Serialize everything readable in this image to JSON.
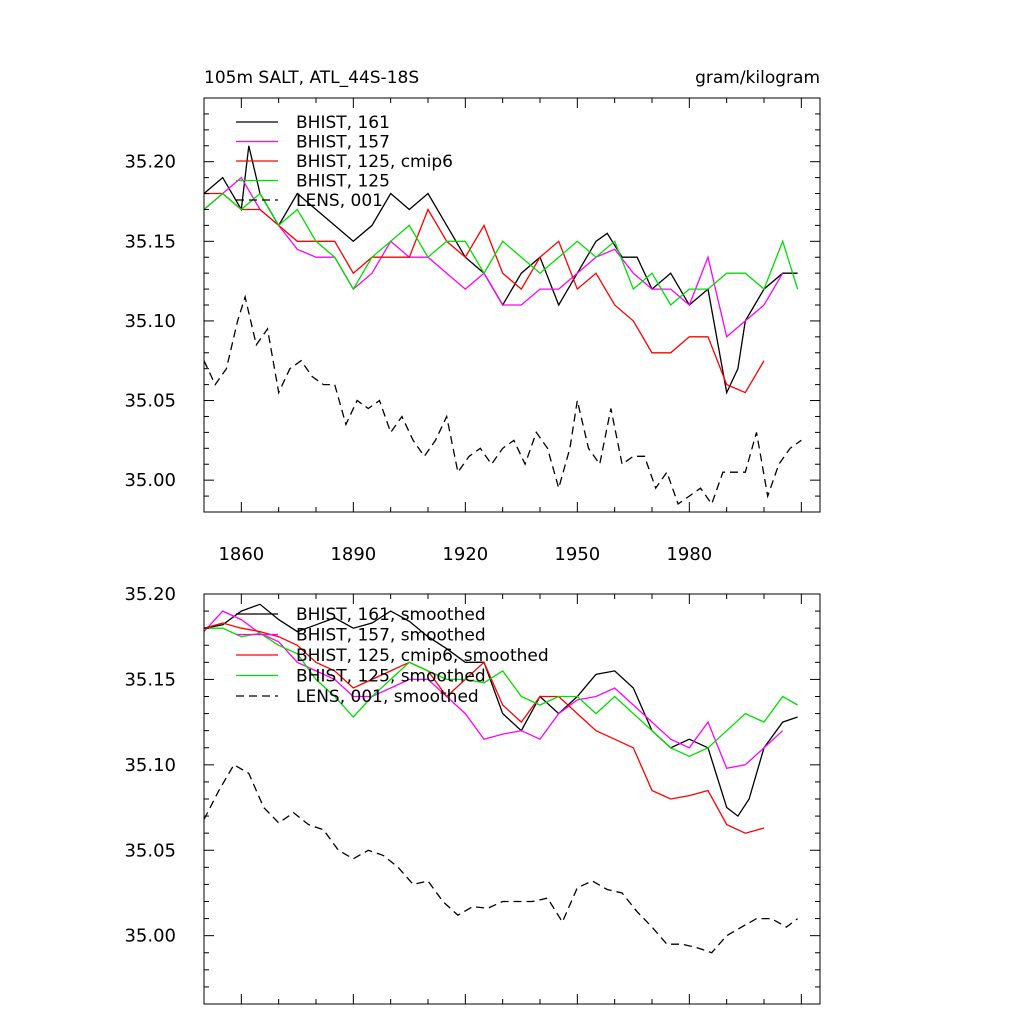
{
  "chart_data": [
    {
      "type": "line",
      "title": "105m SALT, ATL_44S-18S",
      "units": "gram/kilogram",
      "xlim": [
        1850,
        2015
      ],
      "ylim": [
        34.98,
        35.24
      ],
      "x_ticks": [
        1860,
        1890,
        1920,
        1950,
        1980
      ],
      "y_ticks": [
        35.0,
        35.05,
        35.1,
        35.15,
        35.2
      ],
      "y_tick_labels": [
        "35.00",
        "35.05",
        "35.10",
        "35.15",
        "35.20"
      ],
      "x_tick_labels": [
        "1860",
        "1890",
        "1920",
        "1950",
        "1980"
      ],
      "legend_location": "top-left",
      "series": [
        {
          "name": "BHIST, 161",
          "color": "#000000",
          "dash": "solid",
          "x": [
            1850,
            1855,
            1860,
            1862,
            1865,
            1870,
            1875,
            1880,
            1885,
            1890,
            1895,
            1900,
            1905,
            1910,
            1915,
            1920,
            1925,
            1930,
            1935,
            1940,
            1945,
            1950,
            1955,
            1958,
            1962,
            1966,
            1970,
            1975,
            1980,
            1985,
            1990,
            1993,
            1995,
            2000,
            2005,
            2009
          ],
          "y": [
            35.18,
            35.19,
            35.17,
            35.21,
            35.18,
            35.16,
            35.18,
            35.17,
            35.16,
            35.15,
            35.16,
            35.18,
            35.17,
            35.18,
            35.16,
            35.14,
            35.13,
            35.11,
            35.13,
            35.14,
            35.11,
            35.13,
            35.15,
            35.155,
            35.14,
            35.14,
            35.12,
            35.13,
            35.11,
            35.12,
            35.055,
            35.07,
            35.1,
            35.12,
            35.13,
            35.13
          ]
        },
        {
          "name": "BHIST, 157",
          "color": "#ff00ff",
          "dash": "solid",
          "x": [
            1850,
            1855,
            1860,
            1865,
            1870,
            1875,
            1880,
            1885,
            1890,
            1895,
            1900,
            1905,
            1910,
            1915,
            1920,
            1925,
            1930,
            1935,
            1940,
            1945,
            1950,
            1955,
            1960,
            1965,
            1970,
            1975,
            1980,
            1985,
            1990,
            1995,
            2000,
            2005
          ],
          "y": [
            35.17,
            35.18,
            35.19,
            35.17,
            35.16,
            35.145,
            35.14,
            35.14,
            35.12,
            35.13,
            35.15,
            35.14,
            35.14,
            35.13,
            35.12,
            35.13,
            35.11,
            35.11,
            35.12,
            35.12,
            35.13,
            35.14,
            35.145,
            35.13,
            35.12,
            35.12,
            35.11,
            35.14,
            35.09,
            35.1,
            35.11,
            35.13
          ]
        },
        {
          "name": "BHIST, 125, cmip6",
          "color": "#ff0000",
          "dash": "solid",
          "x": [
            1850,
            1855,
            1860,
            1865,
            1870,
            1875,
            1880,
            1885,
            1890,
            1895,
            1900,
            1905,
            1910,
            1915,
            1920,
            1925,
            1930,
            1935,
            1940,
            1945,
            1950,
            1955,
            1960,
            1965,
            1970,
            1975,
            1980,
            1985,
            1990,
            1995,
            2000
          ],
          "y": [
            35.18,
            35.18,
            35.17,
            35.17,
            35.16,
            35.15,
            35.15,
            35.15,
            35.13,
            35.14,
            35.14,
            35.14,
            35.17,
            35.15,
            35.14,
            35.16,
            35.13,
            35.12,
            35.14,
            35.15,
            35.12,
            35.13,
            35.11,
            35.1,
            35.08,
            35.08,
            35.09,
            35.09,
            35.06,
            35.055,
            35.075
          ]
        },
        {
          "name": "BHIST, 125",
          "color": "#00dd00",
          "dash": "solid",
          "x": [
            1850,
            1855,
            1860,
            1865,
            1870,
            1875,
            1880,
            1885,
            1890,
            1895,
            1900,
            1905,
            1910,
            1915,
            1920,
            1925,
            1930,
            1935,
            1940,
            1945,
            1950,
            1955,
            1960,
            1965,
            1970,
            1975,
            1980,
            1985,
            1990,
            1995,
            2000,
            2005,
            2009
          ],
          "y": [
            35.17,
            35.18,
            35.17,
            35.18,
            35.16,
            35.17,
            35.15,
            35.14,
            35.12,
            35.14,
            35.15,
            35.16,
            35.14,
            35.15,
            35.15,
            35.13,
            35.15,
            35.14,
            35.13,
            35.14,
            35.15,
            35.14,
            35.15,
            35.12,
            35.13,
            35.11,
            35.12,
            35.12,
            35.13,
            35.13,
            35.12,
            35.15,
            35.12
          ]
        },
        {
          "name": "LENS, 001",
          "color": "#000000",
          "dash": "dashed",
          "x": [
            1850,
            1853,
            1856,
            1859,
            1861,
            1864,
            1867,
            1870,
            1873,
            1876,
            1879,
            1882,
            1885,
            1888,
            1891,
            1894,
            1897,
            1900,
            1903,
            1906,
            1909,
            1912,
            1915,
            1918,
            1921,
            1924,
            1927,
            1930,
            1933,
            1936,
            1939,
            1942,
            1945,
            1948,
            1950,
            1953,
            1956,
            1959,
            1962,
            1965,
            1968,
            1971,
            1974,
            1977,
            1980,
            1983,
            1986,
            1989,
            1992,
            1995,
            1998,
            2001,
            2004,
            2007,
            2010
          ],
          "y": [
            35.075,
            35.06,
            35.07,
            35.1,
            35.115,
            35.085,
            35.095,
            35.055,
            35.07,
            35.075,
            35.065,
            35.06,
            35.06,
            35.035,
            35.05,
            35.045,
            35.05,
            35.03,
            35.04,
            35.025,
            35.015,
            35.025,
            35.04,
            35.005,
            35.015,
            35.02,
            35.01,
            35.02,
            35.025,
            35.01,
            35.03,
            35.02,
            34.995,
            35.02,
            35.05,
            35.02,
            35.01,
            35.045,
            35.01,
            35.015,
            35.015,
            34.995,
            35.005,
            34.985,
            34.99,
            34.995,
            34.985,
            35.005,
            35.005,
            35.005,
            35.03,
            34.99,
            35.01,
            35.02,
            35.025
          ]
        }
      ]
    },
    {
      "type": "line",
      "xlim": [
        1850,
        2015
      ],
      "ylim": [
        34.96,
        35.2
      ],
      "y_ticks": [
        35.0,
        35.05,
        35.1,
        35.15,
        35.2
      ],
      "y_tick_labels": [
        "35.00",
        "35.05",
        "35.10",
        "35.15",
        "35.20"
      ],
      "legend_location": "top-left",
      "series": [
        {
          "name": "BHIST, 161, smoothed",
          "color": "#000000",
          "dash": "solid",
          "x": [
            1850,
            1855,
            1860,
            1865,
            1870,
            1875,
            1880,
            1885,
            1890,
            1895,
            1900,
            1905,
            1910,
            1915,
            1920,
            1925,
            1930,
            1935,
            1940,
            1945,
            1950,
            1955,
            1960,
            1965,
            1970,
            1975,
            1980,
            1985,
            1990,
            1993,
            1996,
            2000,
            2005,
            2009
          ],
          "y": [
            35.18,
            35.182,
            35.19,
            35.194,
            35.185,
            35.178,
            35.182,
            35.186,
            35.18,
            35.183,
            35.19,
            35.184,
            35.175,
            35.168,
            35.16,
            35.16,
            35.13,
            35.12,
            35.14,
            35.13,
            35.14,
            35.153,
            35.155,
            35.145,
            35.12,
            35.11,
            35.115,
            35.11,
            35.075,
            35.07,
            35.08,
            35.11,
            35.125,
            35.128
          ]
        },
        {
          "name": "BHIST, 157, smoothed",
          "color": "#ff00ff",
          "dash": "solid",
          "x": [
            1850,
            1855,
            1860,
            1865,
            1870,
            1875,
            1880,
            1885,
            1890,
            1895,
            1900,
            1905,
            1910,
            1915,
            1920,
            1925,
            1930,
            1935,
            1940,
            1945,
            1950,
            1955,
            1960,
            1965,
            1970,
            1975,
            1980,
            1985,
            1990,
            1995,
            2000,
            2005
          ],
          "y": [
            35.178,
            35.19,
            35.185,
            35.177,
            35.172,
            35.16,
            35.155,
            35.15,
            35.14,
            35.14,
            35.145,
            35.15,
            35.15,
            35.14,
            35.13,
            35.115,
            35.118,
            35.12,
            35.115,
            35.13,
            35.138,
            35.14,
            35.145,
            35.135,
            35.125,
            35.115,
            35.11,
            35.125,
            35.098,
            35.1,
            35.11,
            35.12
          ]
        },
        {
          "name": "BHIST, 125, cmip6, smoothed",
          "color": "#ff0000",
          "dash": "solid",
          "x": [
            1850,
            1855,
            1860,
            1865,
            1870,
            1875,
            1880,
            1885,
            1890,
            1895,
            1900,
            1905,
            1910,
            1915,
            1920,
            1925,
            1930,
            1935,
            1940,
            1945,
            1950,
            1955,
            1960,
            1965,
            1970,
            1975,
            1980,
            1985,
            1990,
            1995,
            2000
          ],
          "y": [
            35.18,
            35.183,
            35.18,
            35.178,
            35.175,
            35.17,
            35.16,
            35.155,
            35.145,
            35.15,
            35.155,
            35.16,
            35.155,
            35.14,
            35.15,
            35.16,
            35.135,
            35.125,
            35.14,
            35.14,
            35.13,
            35.12,
            35.115,
            35.11,
            35.085,
            35.08,
            35.082,
            35.085,
            35.065,
            35.06,
            35.063
          ]
        },
        {
          "name": "BHIST, 125, smoothed",
          "color": "#00dd00",
          "dash": "solid",
          "x": [
            1850,
            1855,
            1860,
            1865,
            1870,
            1875,
            1880,
            1885,
            1890,
            1895,
            1900,
            1905,
            1910,
            1915,
            1920,
            1925,
            1930,
            1935,
            1940,
            1945,
            1950,
            1955,
            1960,
            1965,
            1970,
            1975,
            1980,
            1985,
            1990,
            1995,
            2000,
            2005,
            2009
          ],
          "y": [
            35.18,
            35.18,
            35.175,
            35.177,
            35.17,
            35.165,
            35.15,
            35.14,
            35.128,
            35.14,
            35.15,
            35.16,
            35.155,
            35.15,
            35.15,
            35.148,
            35.155,
            35.14,
            35.135,
            35.14,
            35.14,
            35.13,
            35.14,
            35.13,
            35.12,
            35.11,
            35.105,
            35.11,
            35.12,
            35.13,
            35.125,
            35.14,
            35.135
          ]
        },
        {
          "name": "LENS, 001, smoothed",
          "color": "#000000",
          "dash": "dashed",
          "x": [
            1850,
            1854,
            1858,
            1862,
            1866,
            1870,
            1874,
            1878,
            1882,
            1886,
            1890,
            1894,
            1898,
            1902,
            1906,
            1910,
            1914,
            1918,
            1922,
            1926,
            1930,
            1934,
            1938,
            1942,
            1946,
            1950,
            1954,
            1958,
            1962,
            1966,
            1970,
            1974,
            1978,
            1982,
            1986,
            1990,
            1994,
            1998,
            2002,
            2006,
            2009
          ],
          "y": [
            35.068,
            35.085,
            35.1,
            35.095,
            35.075,
            35.066,
            35.072,
            35.065,
            35.062,
            35.05,
            35.045,
            35.05,
            35.047,
            35.04,
            35.03,
            35.032,
            35.02,
            35.012,
            35.017,
            35.016,
            35.02,
            35.02,
            35.02,
            35.022,
            35.008,
            35.028,
            35.032,
            35.027,
            35.025,
            35.014,
            35.005,
            34.995,
            34.995,
            34.993,
            34.99,
            35.0,
            35.005,
            35.01,
            35.01,
            35.005,
            35.01
          ]
        }
      ]
    }
  ]
}
